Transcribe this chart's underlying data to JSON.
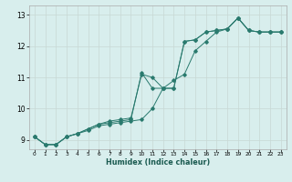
{
  "xlabel": "Humidex (Indice chaleur)",
  "bg_color": "#d8eeed",
  "grid_color_major": "#c8d8d4",
  "grid_color_minor": "#c8d8d4",
  "line_color": "#2a7a6e",
  "xlim": [
    -0.5,
    23.5
  ],
  "ylim": [
    8.7,
    13.3
  ],
  "yticks": [
    9,
    10,
    11,
    12,
    13
  ],
  "xticks": [
    0,
    1,
    2,
    3,
    4,
    5,
    6,
    7,
    8,
    9,
    10,
    11,
    12,
    13,
    14,
    15,
    16,
    17,
    18,
    19,
    20,
    21,
    22,
    23
  ],
  "series": [
    [
      9.1,
      8.85,
      8.85,
      9.1,
      9.2,
      9.35,
      9.5,
      9.55,
      9.6,
      9.65,
      11.15,
      10.65,
      10.65,
      10.65,
      12.15,
      12.2,
      12.45,
      12.5,
      12.55,
      12.9,
      12.5,
      12.45,
      12.45,
      12.45
    ],
    [
      9.1,
      8.85,
      8.85,
      9.1,
      9.2,
      9.35,
      9.5,
      9.6,
      9.65,
      9.7,
      11.1,
      11.0,
      10.65,
      10.65,
      12.15,
      12.2,
      12.45,
      12.5,
      12.55,
      12.9,
      12.5,
      12.45,
      12.45,
      12.45
    ],
    [
      9.1,
      8.85,
      8.85,
      9.1,
      9.2,
      9.3,
      9.45,
      9.5,
      9.55,
      9.6,
      9.65,
      10.0,
      10.65,
      10.9,
      11.1,
      11.85,
      12.15,
      12.45,
      12.55,
      12.9,
      12.5,
      12.45,
      12.45,
      12.45
    ]
  ]
}
